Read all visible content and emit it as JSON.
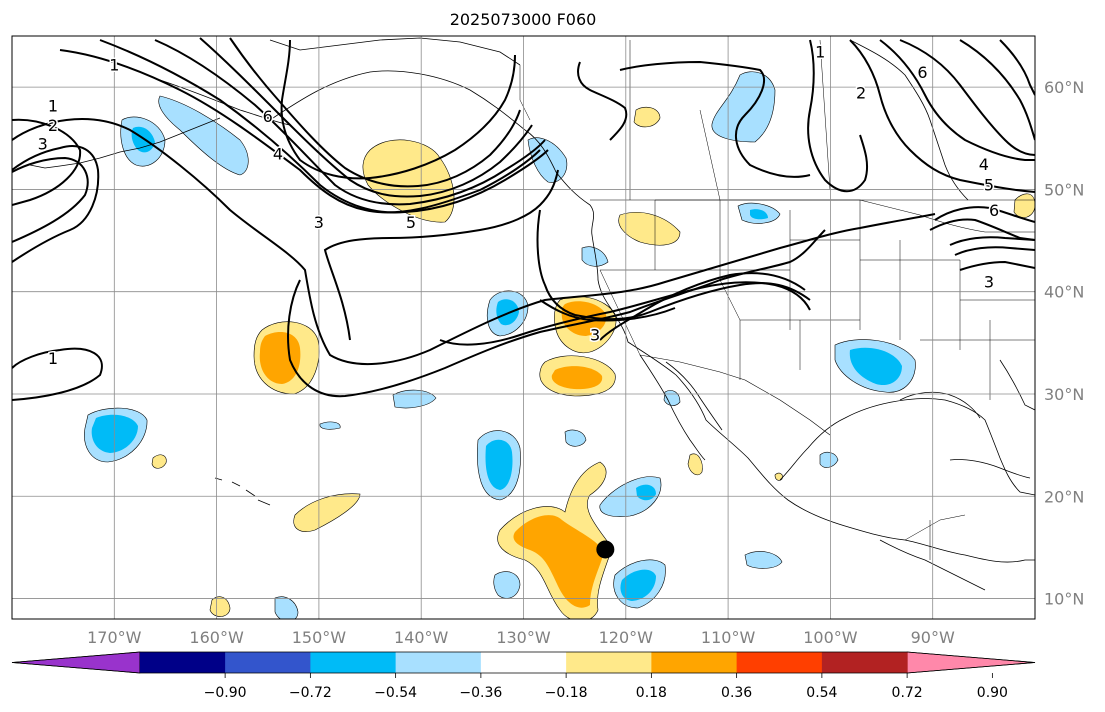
{
  "title": "2025073000 F060",
  "map": {
    "lon_range": [
      -180,
      -80
    ],
    "lat_range": [
      8,
      65
    ],
    "lon_ticks": [
      {
        "value": -170,
        "label": "170°W"
      },
      {
        "value": -160,
        "label": "160°W"
      },
      {
        "value": -150,
        "label": "150°W"
      },
      {
        "value": -140,
        "label": "140°W"
      },
      {
        "value": -130,
        "label": "130°W"
      },
      {
        "value": -120,
        "label": "120°W"
      },
      {
        "value": -110,
        "label": "110°W"
      },
      {
        "value": -100,
        "label": "100°W"
      },
      {
        "value": -90,
        "label": "90°W"
      }
    ],
    "lat_ticks": [
      {
        "value": 10,
        "label": "10°N"
      },
      {
        "value": 20,
        "label": "20°N"
      },
      {
        "value": 30,
        "label": "30°N"
      },
      {
        "value": 40,
        "label": "40°N"
      },
      {
        "value": 50,
        "label": "50°N"
      },
      {
        "value": 60,
        "label": "60°N"
      }
    ],
    "gridlines": true,
    "marker": {
      "lon": -122,
      "lat": 14.8,
      "color": "#000000"
    },
    "contour_labels": [
      {
        "text": "1",
        "lon": -170,
        "lat": 62.2
      },
      {
        "text": "1",
        "lon": -176,
        "lat": 58.2
      },
      {
        "text": "2",
        "lon": -176,
        "lat": 56.3
      },
      {
        "text": "3",
        "lon": -177,
        "lat": 54.5
      },
      {
        "text": "6",
        "lon": -155,
        "lat": 57.2
      },
      {
        "text": "4",
        "lon": -154,
        "lat": 53.5
      },
      {
        "text": "3",
        "lon": -150,
        "lat": 46.8
      },
      {
        "text": "5",
        "lon": -141,
        "lat": 46.8
      },
      {
        "text": "1",
        "lon": -176,
        "lat": 33.5
      },
      {
        "text": "3",
        "lon": -123,
        "lat": 35.8
      },
      {
        "text": "1",
        "lon": -101,
        "lat": 63.5
      },
      {
        "text": "2",
        "lon": -97,
        "lat": 59.5
      },
      {
        "text": "6",
        "lon": -91,
        "lat": 61.5
      },
      {
        "text": "4",
        "lon": -85,
        "lat": 52.5
      },
      {
        "text": "5",
        "lon": -84.5,
        "lat": 50.5
      },
      {
        "text": "6",
        "lon": -84,
        "lat": 48.0
      },
      {
        "text": "3",
        "lon": -84.5,
        "lat": 41.0
      }
    ],
    "land_color": "#ffffff",
    "coast_color": "#000000"
  },
  "colorbar": {
    "colors": [
      "#9933cc",
      "#000088",
      "#3355cc",
      "#00bbf7",
      "#a8e0ff",
      "#ffffff",
      "#ffe98a",
      "#ffa500",
      "#ff3f00",
      "#b22222",
      "#ff88aa"
    ],
    "ticks": [
      "−0.90",
      "−0.72",
      "−0.54",
      "−0.36",
      "−0.18",
      "0.18",
      "0.36",
      "0.54",
      "0.72",
      "0.90"
    ],
    "extend": "both"
  }
}
